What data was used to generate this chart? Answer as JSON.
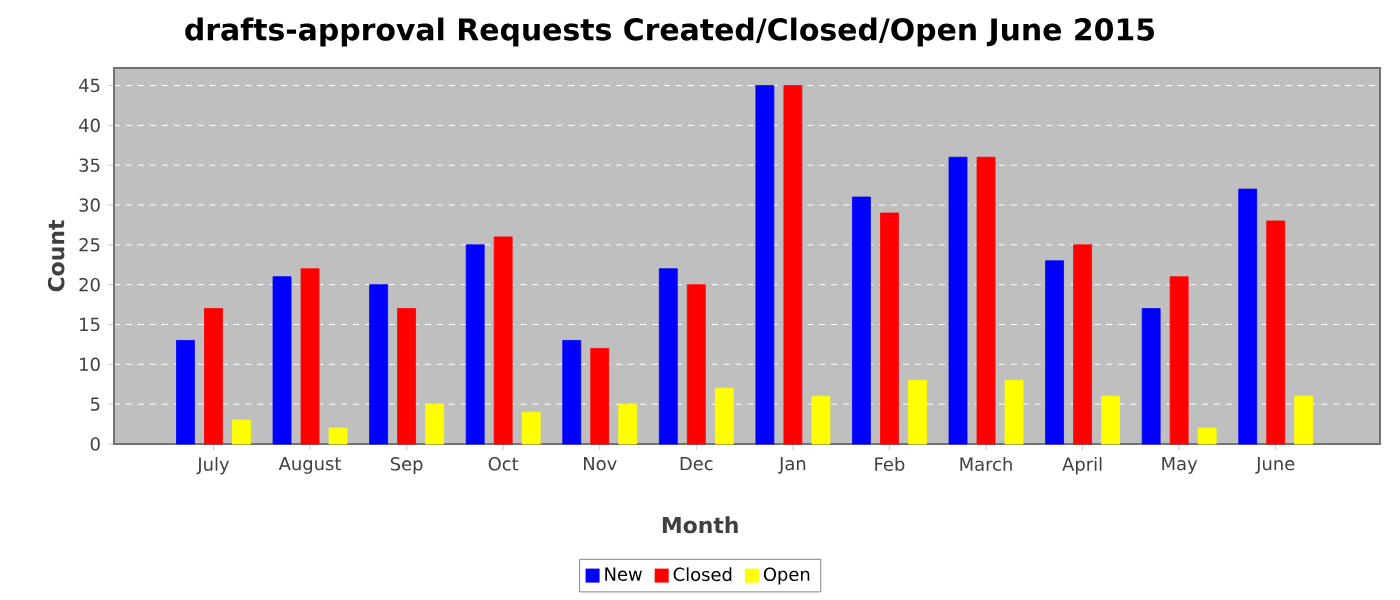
{
  "chart_data": {
    "type": "bar",
    "title": "drafts-approval Requests Created/Closed/Open June 2015",
    "xlabel": "Month",
    "ylabel": "Count",
    "categories": [
      "July",
      "August",
      "Sep",
      "Oct",
      "Nov",
      "Dec",
      "Jan",
      "Feb",
      "March",
      "April",
      "May",
      "June"
    ],
    "series": [
      {
        "name": "New",
        "color": "#0000ff",
        "values": [
          13,
          21,
          20,
          25,
          13,
          22,
          45,
          31,
          36,
          23,
          17,
          32
        ]
      },
      {
        "name": "Closed",
        "color": "#ff0000",
        "values": [
          17,
          22,
          17,
          26,
          12,
          20,
          45,
          29,
          36,
          25,
          21,
          28
        ]
      },
      {
        "name": "Open",
        "color": "#ffff00",
        "values": [
          3,
          2,
          5,
          4,
          5,
          7,
          6,
          8,
          8,
          6,
          2,
          6
        ]
      }
    ],
    "ylim": [
      0,
      47.2
    ],
    "yticks": [
      0,
      5,
      10,
      15,
      20,
      25,
      30,
      35,
      40,
      45
    ],
    "grid": "y",
    "legend": "bottom"
  }
}
